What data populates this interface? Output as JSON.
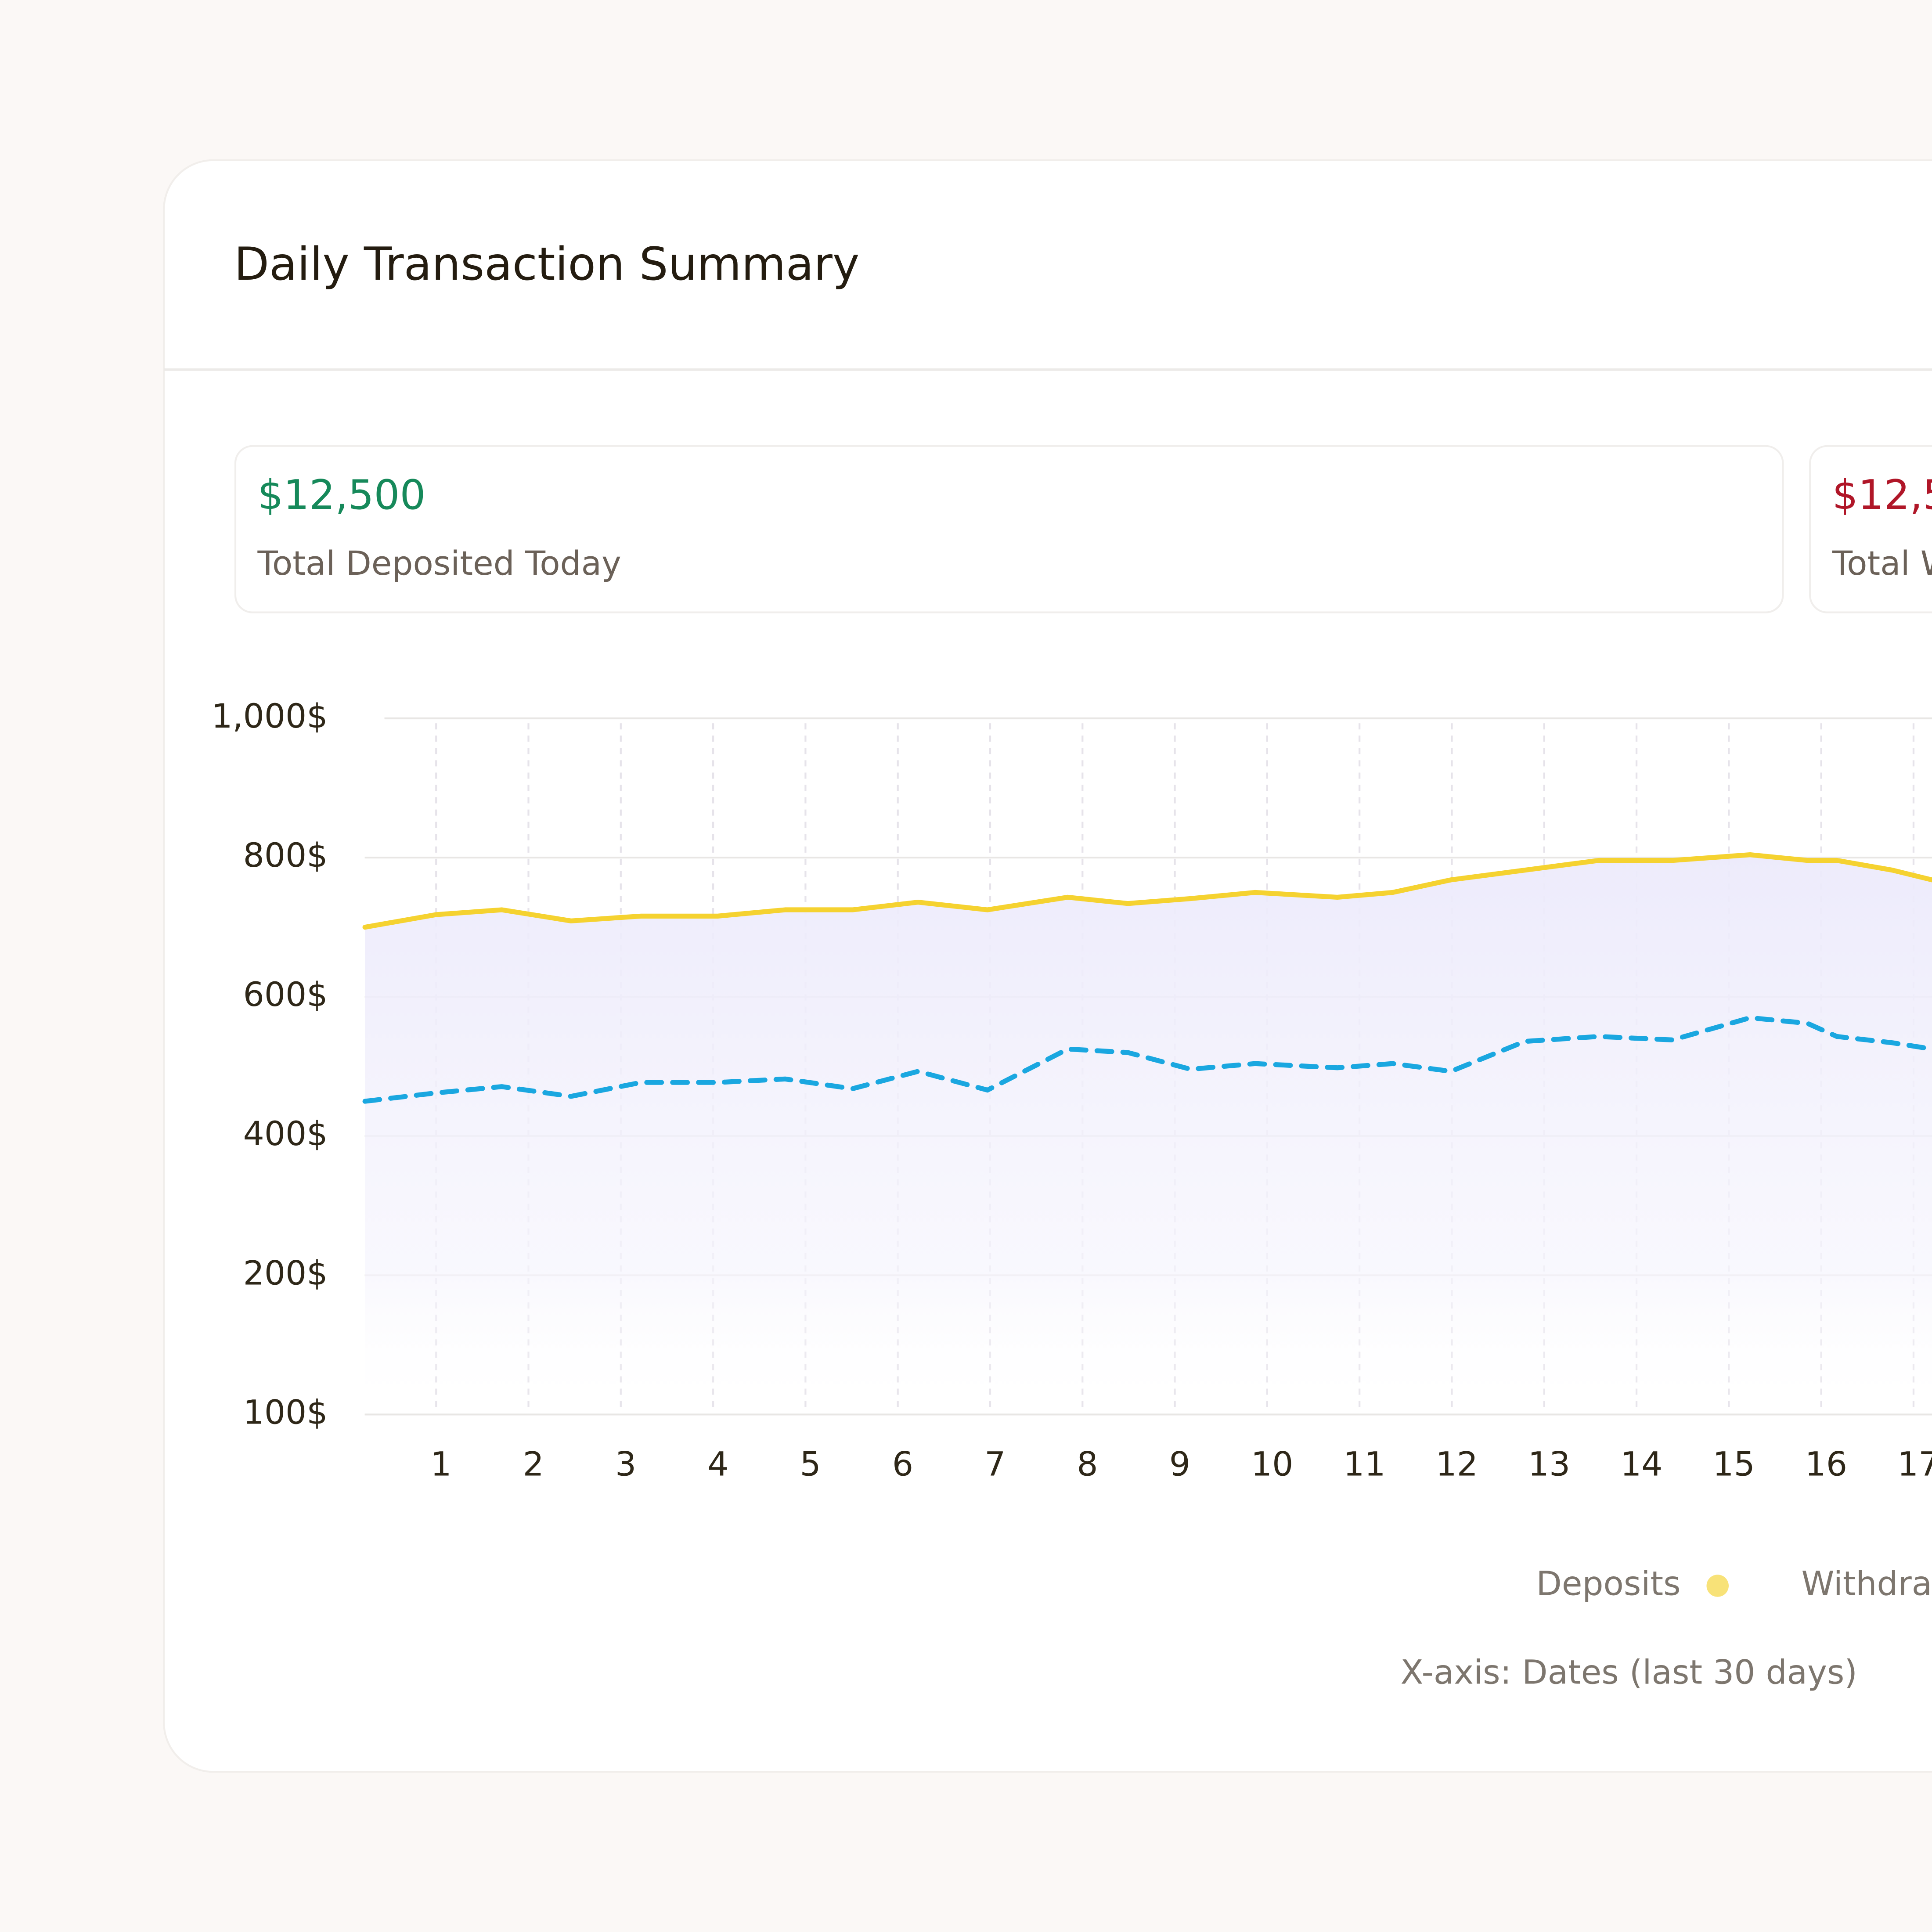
{
  "header": {
    "title": "Daily Transaction Summary"
  },
  "stats": [
    {
      "value": "$12,500",
      "label": "Total Deposited Today"
    },
    {
      "value": "$12,5",
      "label": "Total W"
    }
  ],
  "chart_data": {
    "type": "line",
    "x": [
      0.23,
      1.0,
      1.71,
      2.46,
      3.22,
      4.05,
      4.78,
      5.51,
      6.22,
      6.97,
      7.84,
      8.49,
      9.17,
      9.87,
      10.76,
      11.36,
      11.99,
      12.79,
      13.59,
      14.39,
      15.23,
      15.85,
      16.17,
      16.77,
      17.2
    ],
    "xlim": [
      0.2,
      17.2
    ],
    "xticks": [
      1,
      2,
      3,
      4,
      5,
      6,
      7,
      8,
      9,
      10,
      11,
      12,
      13,
      14,
      15,
      16,
      17
    ],
    "ylim": [
      100,
      1000
    ],
    "yticks": [
      {
        "value": 1000,
        "label": "1,000$"
      },
      {
        "value": 800,
        "label": "800$"
      },
      {
        "value": 600,
        "label": "600$"
      },
      {
        "value": 400,
        "label": "400$"
      },
      {
        "value": 200,
        "label": "200$"
      },
      {
        "value": 100,
        "label": "100$"
      }
    ],
    "grid": true,
    "series": [
      {
        "name": "Deposits",
        "color": "#f5d230",
        "style": "solid",
        "fill": true,
        "values": [
          700,
          718,
          725,
          709,
          716,
          716,
          725,
          725,
          736,
          725,
          743,
          734,
          741,
          750,
          743,
          750,
          768,
          782,
          796,
          796,
          804,
          796,
          796,
          782,
          768
        ]
      },
      {
        "name": "Withdra",
        "color": "#1aa7e0",
        "style": "dashed",
        "fill": false,
        "values": [
          450,
          462,
          471,
          457,
          477,
          477,
          482,
          468,
          493,
          466,
          525,
          520,
          496,
          504,
          498,
          504,
          493,
          536,
          543,
          538,
          570,
          562,
          543,
          534,
          525
        ]
      }
    ],
    "annotation": "X-axis: Dates (last 30 days)"
  }
}
